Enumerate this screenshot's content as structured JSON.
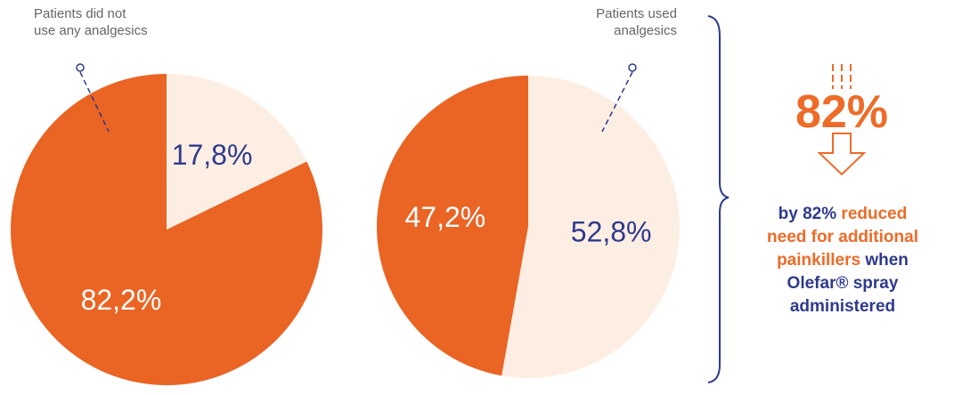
{
  "chart_data": [
    {
      "type": "pie",
      "values": [
        82.2,
        17.8
      ],
      "value_labels": [
        "82,2%",
        "17,8%"
      ],
      "colors": [
        "#ea6424",
        "#fdeee3"
      ],
      "label_colors": [
        "#ffffff",
        "#2e3a8c"
      ],
      "counterclock": true,
      "annotation": [
        "Patients did not",
        "use any analgesics"
      ]
    },
    {
      "type": "pie",
      "values": [
        47.2,
        52.8
      ],
      "value_labels": [
        "47,2%",
        "52,8%"
      ],
      "colors": [
        "#ea6424",
        "#fdeee3"
      ],
      "label_colors": [
        "#ffffff",
        "#2e3a8c"
      ],
      "counterclock": true,
      "annotation": [
        "Patients used",
        "analgesics"
      ]
    }
  ],
  "callout": {
    "figure": "82%",
    "lines": [
      [
        {
          "text": "by 82%",
          "color": "#2e3a8c"
        },
        {
          "text": "reduced",
          "color": "#ee6b28"
        }
      ],
      [
        {
          "text": "need for additional",
          "color": "#ee6b28"
        }
      ],
      [
        {
          "text": "painkillers",
          "color": "#ee6b28"
        },
        {
          "text": "when",
          "color": "#2e3a8c"
        }
      ],
      [
        {
          "text": "Olefar® spray",
          "color": "#2e3a8c"
        }
      ],
      [
        {
          "text": "administered",
          "color": "#2e3a8c"
        }
      ]
    ]
  }
}
